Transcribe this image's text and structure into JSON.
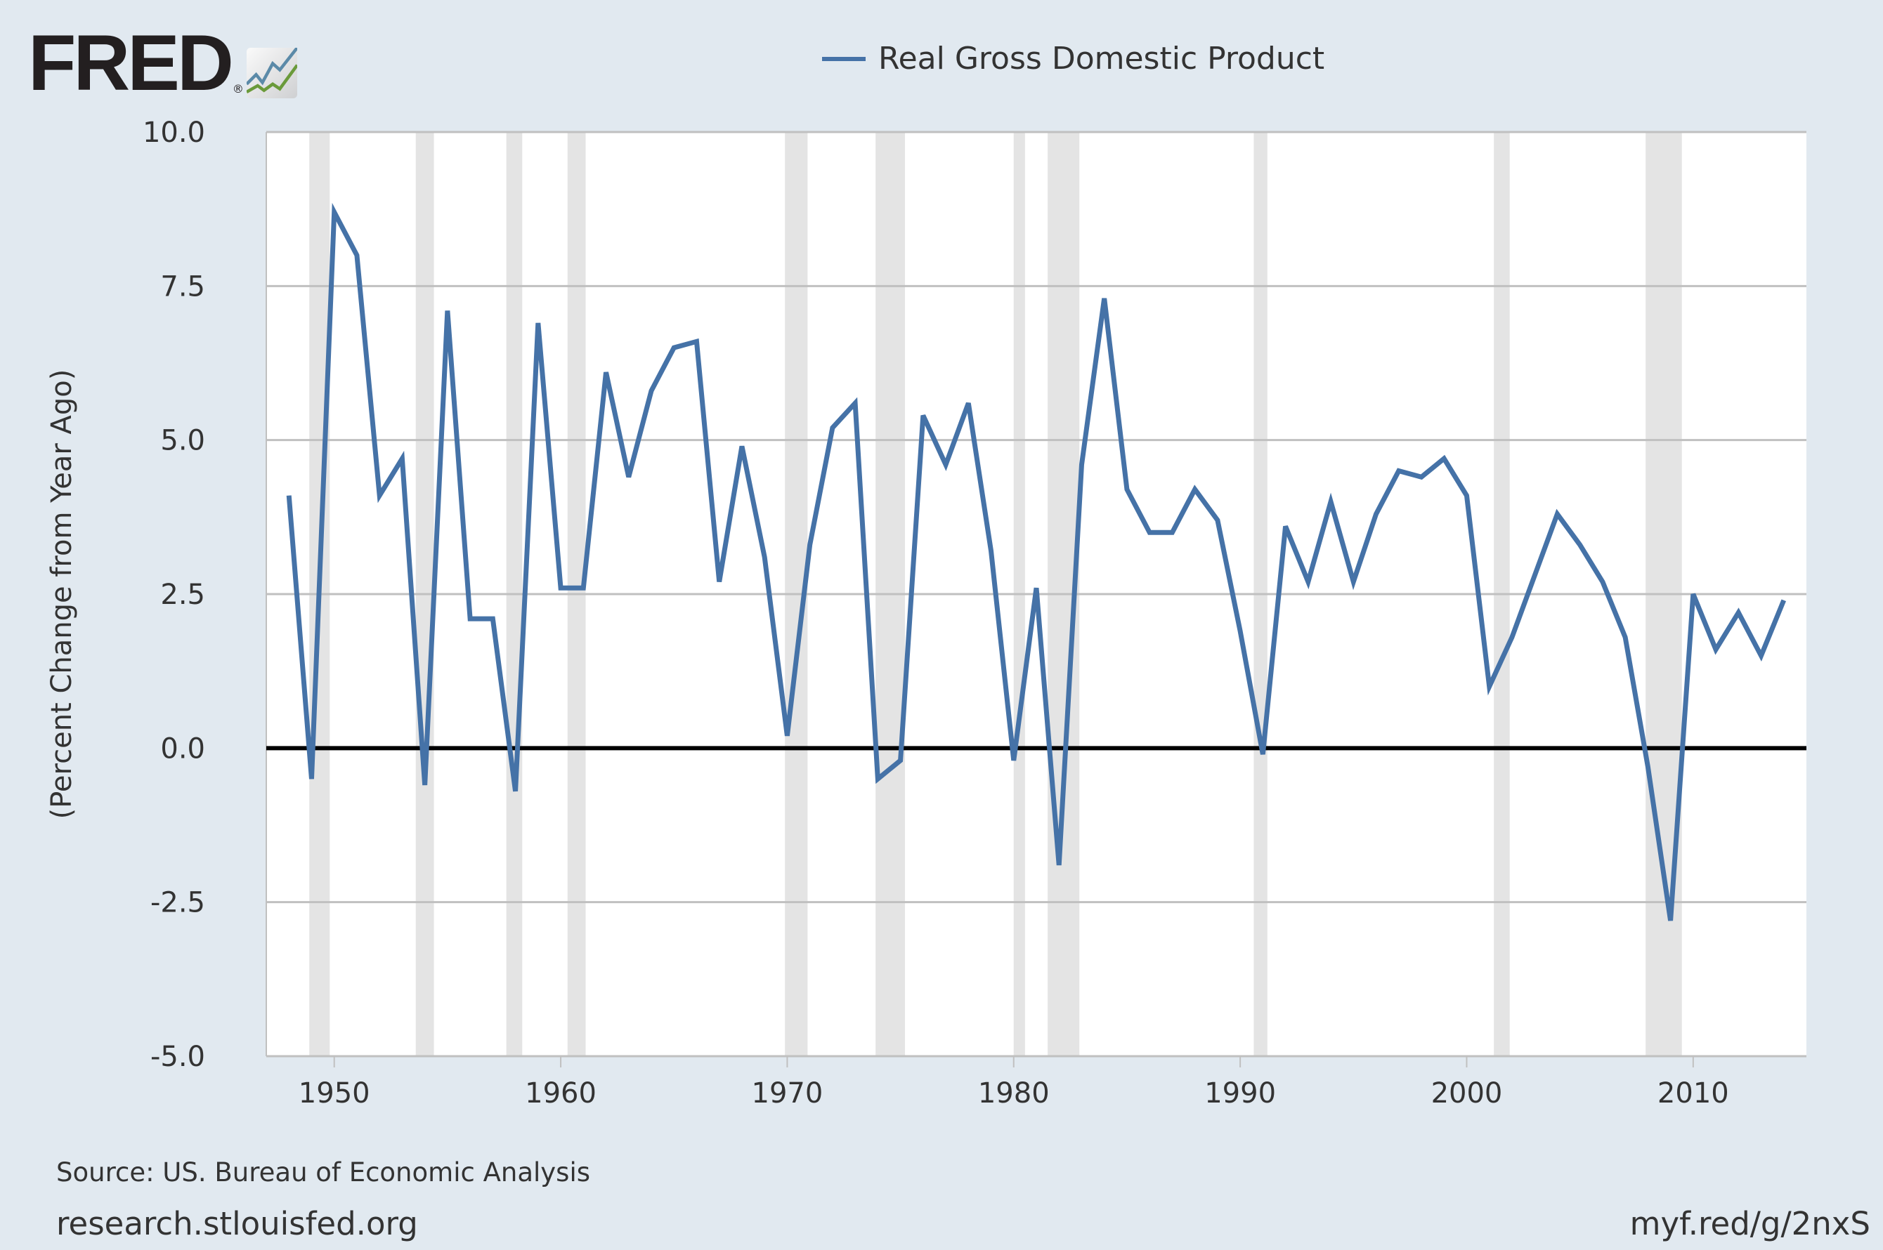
{
  "logo": {
    "text": "FRED",
    "registered": "®"
  },
  "chart_data": {
    "type": "line",
    "title": "",
    "xlabel": "",
    "ylabel": "(Percent Change from Year Ago)",
    "xlim": [
      1947,
      2015
    ],
    "ylim": [
      -5,
      10
    ],
    "grid": true,
    "legend_position": "top-center",
    "x_ticks": [
      1950,
      1960,
      1970,
      1980,
      1990,
      2000,
      2010
    ],
    "y_ticks": [
      "-5.0",
      "-2.5",
      "0.0",
      "2.5",
      "5.0",
      "7.5",
      "10.0"
    ],
    "colors": {
      "series": "#4572a7",
      "recession": "#e4e4e4",
      "zero_line": "#000000",
      "grid": "#c0c0c0",
      "background": "#e1e9f0"
    },
    "recessions": [
      [
        1948.9,
        1949.8
      ],
      [
        1953.6,
        1954.4
      ],
      [
        1957.6,
        1958.3
      ],
      [
        1960.3,
        1961.1
      ],
      [
        1969.9,
        1970.9
      ],
      [
        1973.9,
        1975.2
      ],
      [
        1980.0,
        1980.5
      ],
      [
        1981.5,
        1982.9
      ],
      [
        1990.6,
        1991.2
      ],
      [
        2001.2,
        2001.9
      ],
      [
        2007.9,
        2009.5
      ]
    ],
    "series": [
      {
        "name": "Real Gross Domestic Product",
        "x": [
          1948,
          1949,
          1950,
          1951,
          1952,
          1953,
          1954,
          1955,
          1956,
          1957,
          1958,
          1959,
          1960,
          1961,
          1962,
          1963,
          1964,
          1965,
          1966,
          1967,
          1968,
          1969,
          1970,
          1971,
          1972,
          1973,
          1974,
          1975,
          1976,
          1977,
          1978,
          1979,
          1980,
          1981,
          1982,
          1983,
          1984,
          1985,
          1986,
          1987,
          1988,
          1989,
          1990,
          1991,
          1992,
          1993,
          1994,
          1995,
          1996,
          1997,
          1998,
          1999,
          2000,
          2001,
          2002,
          2003,
          2004,
          2005,
          2006,
          2007,
          2008,
          2009,
          2010,
          2011,
          2012,
          2013,
          2014
        ],
        "values": [
          4.1,
          -0.5,
          8.7,
          8.0,
          4.1,
          4.7,
          -0.6,
          7.1,
          2.1,
          2.1,
          -0.7,
          6.9,
          2.6,
          2.6,
          6.1,
          4.4,
          5.8,
          6.5,
          6.6,
          2.7,
          4.9,
          3.1,
          0.2,
          3.3,
          5.2,
          5.6,
          -0.5,
          -0.2,
          5.4,
          4.6,
          5.6,
          3.2,
          -0.2,
          2.6,
          -1.9,
          4.6,
          7.3,
          4.2,
          3.5,
          3.5,
          4.2,
          3.7,
          1.9,
          -0.1,
          3.6,
          2.7,
          4.0,
          2.7,
          3.8,
          4.5,
          4.4,
          4.7,
          4.1,
          1.0,
          1.8,
          2.8,
          3.8,
          3.3,
          2.7,
          1.8,
          -0.3,
          -2.8,
          2.5,
          1.6,
          2.2,
          1.5,
          2.4
        ]
      }
    ]
  },
  "footer": {
    "source": "Source: US. Bureau of Economic Analysis",
    "site": "research.stlouisfed.org",
    "short_url": "myf.red/g/2nxS"
  }
}
